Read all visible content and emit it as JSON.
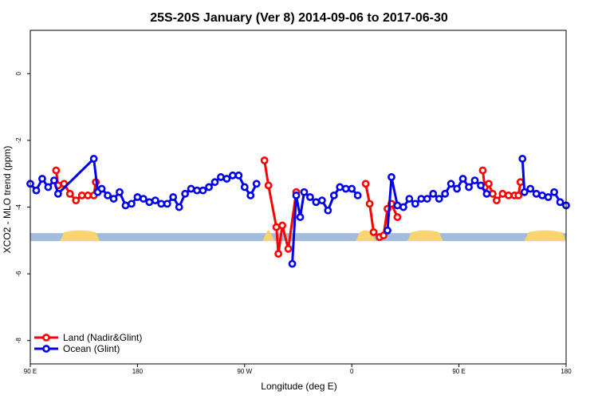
{
  "chart_data": {
    "type": "line",
    "title": "25S-20S January (Ver 8)   2014-09-06 to 2017-06-30",
    "xlabel": "Longitude (deg E)",
    "ylabel": "XCO2 - MLO trend (ppm)",
    "xlim": [
      -90,
      180
    ],
    "ylim": [
      -8.7,
      1.3
    ],
    "x_ticks": [
      -90,
      -36,
      18,
      72,
      126,
      180
    ],
    "x_tick_labels": [
      "90 E",
      "180",
      "90 W",
      "0",
      "90 E",
      "180"
    ],
    "y_ticks": [
      0,
      -2,
      -4,
      -6,
      -8
    ],
    "y_tick_labels": [
      "0",
      "-2",
      "-4",
      "-6",
      "-8"
    ],
    "grid": false,
    "legend_position": "bottom-left",
    "colors": {
      "land": "#ff0000",
      "ocean": "#0000ee",
      "surface_ocean": "#a3bbdd",
      "surface_land": "#fad56d"
    },
    "surface_band": {
      "y": -4.9,
      "land_segments": [
        [
          -75,
          -55
        ],
        [
          27,
          33
        ],
        [
          74,
          84
        ],
        [
          100,
          118
        ],
        [
          159,
          181
        ]
      ]
    },
    "series": [
      {
        "name": "Land (Nadir&Glint)",
        "segments": [
          {
            "x": [
              -77,
              -76,
              -73,
              -70,
              -67,
              -64,
              -61,
              -58,
              -57
            ],
            "y": [
              -2.9,
              -3.35,
              -3.3,
              -3.6,
              -3.8,
              -3.65,
              -3.65,
              -3.65,
              -3.25
            ]
          },
          {
            "x": [
              28,
              30,
              34,
              35,
              37,
              40,
              44
            ],
            "y": [
              -2.6,
              -3.35,
              -4.6,
              -5.4,
              -4.55,
              -5.25,
              -3.55
            ]
          },
          {
            "x": [
              79,
              81,
              83,
              86,
              88,
              90,
              92,
              95
            ],
            "y": [
              -3.3,
              -3.9,
              -4.75,
              -4.9,
              -4.85,
              -4.05,
              -3.9,
              -4.3
            ]
          },
          {
            "x": [
              138,
              139,
              141,
              143,
              145,
              148,
              151,
              154,
              156,
              157
            ],
            "y": [
              -2.9,
              -3.4,
              -3.3,
              -3.6,
              -3.8,
              -3.6,
              -3.65,
              -3.65,
              -3.65,
              -3.25
            ]
          }
        ]
      },
      {
        "name": "Ocean (Glint)",
        "segments": [
          {
            "x": [
              -90,
              -87,
              -84,
              -81,
              -78,
              -76,
              -58,
              -56,
              -54,
              -51,
              -48,
              -45,
              -42,
              -39,
              -36,
              -33,
              -30,
              -27,
              -24,
              -21,
              -18,
              -15,
              -12,
              -9,
              -6,
              -3,
              0,
              3,
              6,
              9,
              12,
              15,
              18,
              21,
              24,
              27,
              29
            ],
            "y": [
              -3.3,
              -3.5,
              -3.15,
              -3.4,
              -3.2,
              -3.6,
              -2.55,
              -3.55,
              -3.45,
              -3.65,
              -3.75,
              -3.55,
              -3.95,
              -3.9,
              -3.7,
              -3.75,
              -3.85,
              -3.8,
              -3.9,
              -3.9,
              -3.7,
              -4.0,
              -3.6,
              -3.45,
              -3.5,
              -3.5,
              -3.4,
              -3.25,
              -3.1,
              -3.15,
              -3.05,
              -3.05,
              -3.4,
              -3.65,
              -3.3,
              null,
              null
            ]
          },
          {
            "x": [
              42,
              44,
              46,
              48,
              51,
              54,
              57,
              60,
              63,
              66,
              69,
              72,
              75,
              78,
              80
            ],
            "y": [
              -5.7,
              -3.65,
              -4.3,
              -3.55,
              -3.7,
              -3.85,
              -3.8,
              -4.1,
              -3.65,
              -3.4,
              -3.45,
              -3.45,
              -3.65,
              null,
              null
            ]
          },
          {
            "x": [
              90,
              92,
              95,
              98,
              101,
              104,
              107,
              110,
              113,
              116,
              119,
              122,
              125,
              128,
              131,
              134,
              137,
              140
            ],
            "y": [
              -4.7,
              -3.1,
              -3.95,
              -4.0,
              -3.75,
              -3.9,
              -3.75,
              -3.75,
              -3.6,
              -3.75,
              -3.6,
              -3.3,
              -3.45,
              -3.15,
              -3.4,
              -3.2,
              -3.35,
              -3.6
            ]
          },
          {
            "x": [
              158,
              159,
              162,
              165,
              168,
              171,
              174,
              177,
              180
            ],
            "y": [
              -2.55,
              -3.55,
              -3.45,
              -3.6,
              -3.65,
              -3.7,
              -3.55,
              -3.85,
              -3.95
            ]
          }
        ]
      }
    ]
  }
}
